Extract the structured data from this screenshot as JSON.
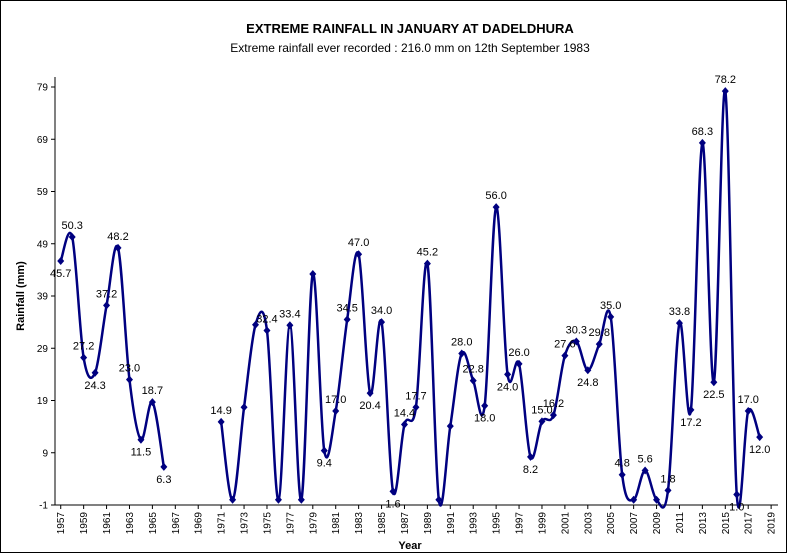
{
  "chart_data": {
    "type": "line",
    "title": "EXTREME RAINFALL IN JANUARY AT DADELDHURA",
    "subtitle": "Extreme rainfall ever recorded : 216.0 mm on 12th September 1983",
    "x_label": "Year",
    "y_label": "Rainfall (mm)",
    "x": [
      1957,
      1958,
      1959,
      1960,
      1961,
      1962,
      1963,
      1964,
      1965,
      1966,
      1967,
      1968,
      1969,
      1970,
      1971,
      1972,
      1973,
      1974,
      1975,
      1976,
      1977,
      1978,
      1979,
      1980,
      1981,
      1982,
      1983,
      1984,
      1985,
      1986,
      1987,
      1988,
      1989,
      1990,
      1991,
      1992,
      1993,
      1994,
      1995,
      1996,
      1997,
      1998,
      1999,
      2000,
      2001,
      2002,
      2003,
      2004,
      2005,
      2006,
      2007,
      2008,
      2009,
      2010,
      2011,
      2012,
      2013,
      2014,
      2015,
      2016,
      2017,
      2018,
      2019
    ],
    "series": [
      {
        "color": "#000080",
        "values": [
          45.7,
          50.3,
          27.2,
          24.3,
          37.2,
          48.2,
          23.0,
          11.5,
          18.7,
          6.3,
          null,
          null,
          null,
          null,
          14.9,
          0,
          17.7,
          33.5,
          32.4,
          0,
          33.4,
          0,
          43.2,
          9.4,
          17.0,
          34.5,
          47.0,
          20.4,
          34.0,
          1.6,
          14.4,
          17.7,
          45.2,
          0,
          14.1,
          28.0,
          22.8,
          18.0,
          56.0,
          24.0,
          26.0,
          8.2,
          15.0,
          16.2,
          27.6,
          30.3,
          24.8,
          29.8,
          35.0,
          4.8,
          0,
          5.6,
          0,
          1.8,
          33.8,
          17.2,
          68.3,
          22.5,
          78.2,
          1.0,
          17.0,
          12.0,
          null
        ],
        "value_labels": [
          "45.7",
          "50.3",
          "27.2",
          "24.3",
          "37.2",
          "48.2",
          "23.0",
          "11.5",
          "18.7",
          "6.3",
          null,
          null,
          null,
          null,
          "14.9",
          null,
          null,
          null,
          "32.4",
          null,
          "33.4",
          null,
          null,
          "9.4",
          "17.0",
          "34.5",
          "47.0",
          "20.4",
          "34.0",
          "1.6",
          "14.4",
          "17.7",
          "45.2",
          null,
          null,
          "28.0",
          "22.8",
          "18.0",
          "56.0",
          "24.0",
          "26.0",
          "8.2",
          "15.0",
          "16.2",
          "27.6",
          "30.3",
          "24.8",
          "29.8",
          "35.0",
          "4.8",
          null,
          "5.6",
          null,
          "1.8",
          "33.8",
          "17.2",
          "68.3",
          "22.5",
          "78.2",
          "1.0",
          "17.0",
          "12.0",
          null
        ]
      }
    ],
    "xlim": [
      1956.5,
      2019.6
    ],
    "xticks": [
      1957,
      1959,
      1961,
      1963,
      1965,
      1967,
      1969,
      1971,
      1973,
      1975,
      1977,
      1979,
      1981,
      1983,
      1985,
      1987,
      1989,
      1991,
      1993,
      1995,
      1997,
      1999,
      2001,
      2003,
      2005,
      2007,
      2009,
      2011,
      2013,
      2015,
      2017,
      2019
    ],
    "ylim": [
      -1,
      79
    ],
    "yticks": [
      -1,
      9,
      19,
      29,
      39,
      49,
      59,
      69,
      79
    ]
  }
}
